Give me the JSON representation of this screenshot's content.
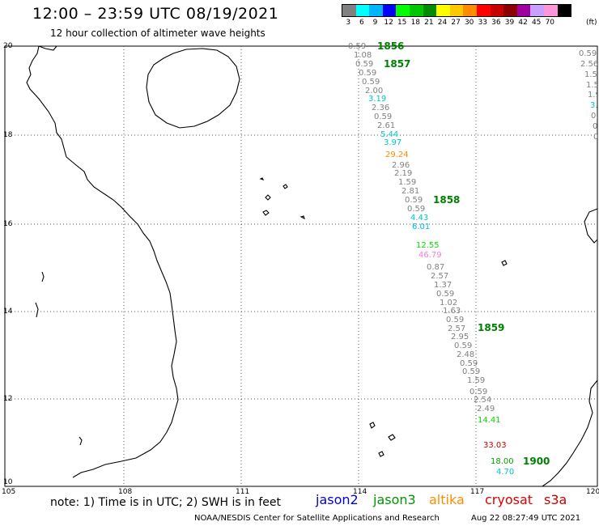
{
  "header": {
    "title": "12:00 – 23:59 UTC 08/19/2021",
    "subtitle": "12 hour collection of altimeter wave heights"
  },
  "color_scale": {
    "unit": "(ft)",
    "bins": [
      {
        "label": "3",
        "color": "#808080"
      },
      {
        "label": "6",
        "color": "#00ffff"
      },
      {
        "label": "9",
        "color": "#00b4ff"
      },
      {
        "label": "12",
        "color": "#0000ff"
      },
      {
        "label": "15",
        "color": "#00ff00"
      },
      {
        "label": "18",
        "color": "#00c800"
      },
      {
        "label": "21",
        "color": "#008c00"
      },
      {
        "label": "24",
        "color": "#ffff00"
      },
      {
        "label": "27",
        "color": "#ffc800"
      },
      {
        "label": "30",
        "color": "#ff8c00"
      },
      {
        "label": "33",
        "color": "#ff0000"
      },
      {
        "label": "36",
        "color": "#c80000"
      },
      {
        "label": "39",
        "color": "#8c0000"
      },
      {
        "label": "42",
        "color": "#a000a0"
      },
      {
        "label": "45",
        "color": "#c8a0ff"
      },
      {
        "label": "70",
        "color": "#ff96dc"
      },
      {
        "label": "",
        "color": "#000000"
      }
    ]
  },
  "axes": {
    "lon_labels": [
      "105",
      "108",
      "111",
      "114",
      "117",
      "120"
    ],
    "lat_labels": [
      "20",
      "18",
      "16",
      "14",
      "12",
      "10"
    ]
  },
  "note": "note:  1) Time is in UTC;  2) SWH is in feet",
  "satellites": [
    {
      "name": "jason2",
      "color": "#0000dc"
    },
    {
      "name": "jason3",
      "color": "#009600"
    },
    {
      "name": "altika",
      "color": "#ff8c00"
    },
    {
      "name": "cryosat",
      "color": "#dc0000"
    },
    {
      "name": "s3a",
      "color": "#c80000"
    }
  ],
  "footer": {
    "source": "NOAA/NESDIS Center for Satellite Applications and Research",
    "timestamp": "Aug 22 08:27:49 UTC 2021"
  },
  "track_times": [
    "1856",
    "1857",
    "1858",
    "1859",
    "1900"
  ],
  "observations": [
    {
      "v": "0.59",
      "c": "#808080"
    },
    {
      "v": "1.08",
      "c": "#808080"
    },
    {
      "v": "0.59",
      "c": "#808080"
    },
    {
      "v": "0.59",
      "c": "#808080"
    },
    {
      "v": "0.59",
      "c": "#808080"
    },
    {
      "v": "2.00",
      "c": "#808080"
    },
    {
      "v": "3.19",
      "c": "#00c8c8"
    },
    {
      "v": "2.36",
      "c": "#808080"
    },
    {
      "v": "0.59",
      "c": "#808080"
    },
    {
      "v": "2.61",
      "c": "#808080"
    },
    {
      "v": "5.44",
      "c": "#00c8c8"
    },
    {
      "v": "3.97",
      "c": "#00c8c8"
    },
    {
      "v": "29.24",
      "c": "#ff8c00"
    },
    {
      "v": "2.96",
      "c": "#808080"
    },
    {
      "v": "2.19",
      "c": "#808080"
    },
    {
      "v": "1.59",
      "c": "#808080"
    },
    {
      "v": "2.81",
      "c": "#808080"
    },
    {
      "v": "0.59",
      "c": "#808080"
    },
    {
      "v": "0.59",
      "c": "#808080"
    },
    {
      "v": "4.43",
      "c": "#00c8c8"
    },
    {
      "v": "6.01",
      "c": "#00b4ff"
    },
    {
      "v": "12.55",
      "c": "#00dc00"
    },
    {
      "v": "46.79",
      "c": "#ff78dc"
    },
    {
      "v": "0.87",
      "c": "#808080"
    },
    {
      "v": "2.57",
      "c": "#808080"
    },
    {
      "v": "1.37",
      "c": "#808080"
    },
    {
      "v": "0.59",
      "c": "#808080"
    },
    {
      "v": "1.02",
      "c": "#808080"
    },
    {
      "v": "1.63",
      "c": "#808080"
    },
    {
      "v": "0.59",
      "c": "#808080"
    },
    {
      "v": "2.57",
      "c": "#808080"
    },
    {
      "v": "2.95",
      "c": "#808080"
    },
    {
      "v": "0.59",
      "c": "#808080"
    },
    {
      "v": "2.48",
      "c": "#808080"
    },
    {
      "v": "0.59",
      "c": "#808080"
    },
    {
      "v": "0.59",
      "c": "#808080"
    },
    {
      "v": "1.59",
      "c": "#808080"
    },
    {
      "v": "0.59",
      "c": "#808080"
    },
    {
      "v": "2.54",
      "c": "#808080"
    },
    {
      "v": "2.49",
      "c": "#808080"
    },
    {
      "v": "14.41",
      "c": "#00dc00"
    },
    {
      "v": "33.03",
      "c": "#c80000"
    },
    {
      "v": "18.00",
      "c": "#00a000"
    },
    {
      "v": "4.70",
      "c": "#00c8c8"
    }
  ],
  "right_edge_values": [
    {
      "v": "0.59",
      "c": "#808080"
    },
    {
      "v": "2.56",
      "c": "#808080"
    },
    {
      "v": "1.5",
      "c": "#808080"
    },
    {
      "v": "1.5",
      "c": "#808080"
    },
    {
      "v": "1.9",
      "c": "#808080"
    },
    {
      "v": "3.",
      "c": "#00c8c8"
    },
    {
      "v": "0.",
      "c": "#808080"
    },
    {
      "v": "0",
      "c": "#808080"
    },
    {
      "v": "0",
      "c": "#808080"
    }
  ]
}
